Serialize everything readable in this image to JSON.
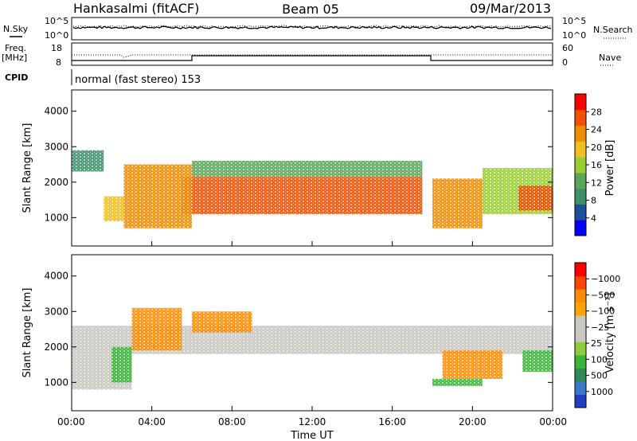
{
  "header": {
    "station": "Hankasalmi (fitACF)",
    "beam": "Beam 05",
    "date": "09/Mar/2013"
  },
  "status_panels": {
    "left_labels": {
      "nsky": "N.Sky",
      "freq": "Freq.",
      "mhz": "[MHz]",
      "cpid": "CPID"
    },
    "right_labels": {
      "nsearch": "N.Search",
      "nave": "Nave"
    },
    "noise_ticks_left": [
      "10^5",
      "10^0"
    ],
    "noise_ticks_right": [
      "10^5",
      "10^0"
    ],
    "freq_ticks": [
      "18",
      "8"
    ],
    "nave_ticks": [
      "60",
      "0"
    ],
    "cpid_text": "normal (fast stereo) 153"
  },
  "colors": {
    "power_scale": [
      "#0000ff",
      "#1f4e9a",
      "#3f8f6a",
      "#5ba55b",
      "#9acd32",
      "#f0c020",
      "#f08c00",
      "#f05000",
      "#ff0000"
    ],
    "velocity_scale": [
      "#ff0000",
      "#ff4500",
      "#ff8c00",
      "#ffa500",
      "#c8c8c0",
      "#c8c8c0",
      "#8ccd3c",
      "#3cb43c",
      "#2e8b57",
      "#3c78c8",
      "#2040c0"
    ],
    "ground_scatter": "#c8c8c0"
  },
  "chart_data": [
    {
      "type": "heatmap",
      "name": "power",
      "ylabel": "Slant Range [km]",
      "yticks": [
        "1000",
        "2000",
        "3000",
        "4000"
      ],
      "ylim": [
        200,
        4600
      ],
      "xlim_hours": [
        0,
        24
      ],
      "colorbar": {
        "label": "Power [dB]",
        "ticks": [
          "4",
          "8",
          "12",
          "16",
          "20",
          "24",
          "28"
        ]
      },
      "echo_regions": [
        {
          "t": [
            5.5,
            17.5
          ],
          "r": [
            1100,
            2150
          ],
          "level": 26
        },
        {
          "t": [
            2.6,
            6.0
          ],
          "r": [
            700,
            2500
          ],
          "level": 22
        },
        {
          "t": [
            1.6,
            2.6
          ],
          "r": [
            900,
            1600
          ],
          "level": 18
        },
        {
          "t": [
            18.0,
            20.5
          ],
          "r": [
            700,
            2100
          ],
          "level": 24
        },
        {
          "t": [
            0.0,
            1.6
          ],
          "r": [
            2300,
            2900
          ],
          "level": 8
        },
        {
          "t": [
            6.0,
            17.5
          ],
          "r": [
            2150,
            2600
          ],
          "level": 12
        },
        {
          "t": [
            20.5,
            24.0
          ],
          "r": [
            1100,
            2400
          ],
          "level": 14
        },
        {
          "t": [
            22.3,
            24.0
          ],
          "r": [
            1200,
            1900
          ],
          "level": 26
        }
      ]
    },
    {
      "type": "heatmap",
      "name": "velocity",
      "ylabel": "Slant Range [km]",
      "yticks": [
        "1000",
        "2000",
        "3000",
        "4000"
      ],
      "ylim": [
        200,
        4600
      ],
      "xlim_hours": [
        0,
        24
      ],
      "xticks": [
        "00:00",
        "04:00",
        "08:00",
        "12:00",
        "16:00",
        "20:00",
        "00:00"
      ],
      "xlabel": "Time UT",
      "colorbar": {
        "label": "Velocity [m s⁻¹]",
        "ticks": [
          "1000",
          "500",
          "100",
          "25",
          "−25",
          "−100",
          "−500",
          "−1000"
        ]
      },
      "echo_regions": [
        {
          "t": [
            0.0,
            24.0
          ],
          "r": [
            1800,
            2600
          ],
          "kind": "ground"
        },
        {
          "t": [
            0.0,
            3.0
          ],
          "r": [
            800,
            1800
          ],
          "kind": "ground"
        },
        {
          "t": [
            3.0,
            5.5
          ],
          "r": [
            1900,
            3100
          ],
          "velocity": -300
        },
        {
          "t": [
            6.0,
            9.0
          ],
          "r": [
            2400,
            3000
          ],
          "velocity": -500
        },
        {
          "t": [
            2.0,
            3.0
          ],
          "r": [
            1000,
            2000
          ],
          "velocity": 150
        },
        {
          "t": [
            18.5,
            21.5
          ],
          "r": [
            1100,
            1900
          ],
          "velocity": -250
        },
        {
          "t": [
            18.0,
            20.5
          ],
          "r": [
            900,
            1100
          ],
          "velocity": 120
        },
        {
          "t": [
            22.5,
            24.0
          ],
          "r": [
            1300,
            1900
          ],
          "velocity": 120
        }
      ]
    }
  ]
}
